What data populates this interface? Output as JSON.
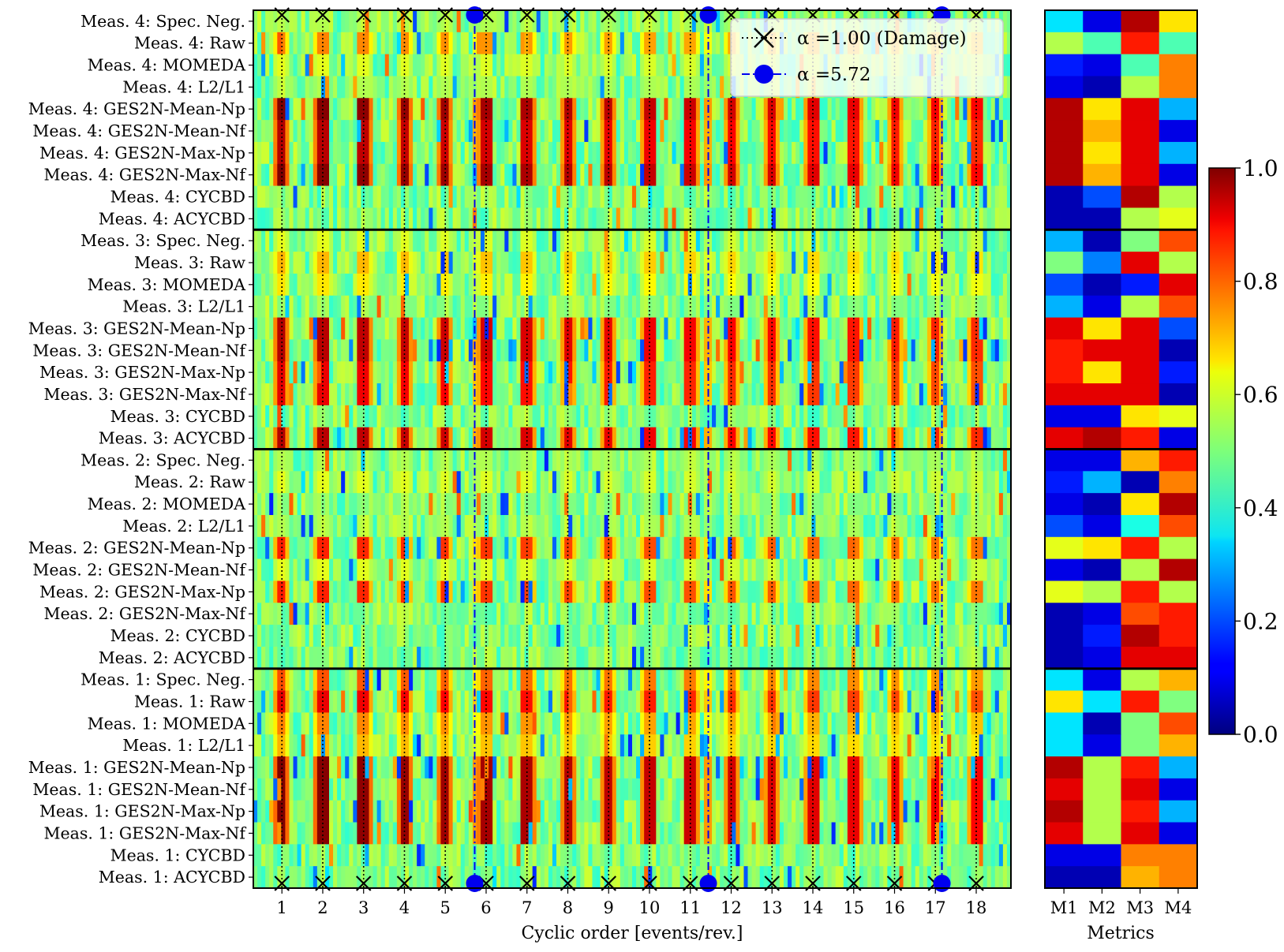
{
  "chart_data": [
    {
      "type": "heatmap",
      "xlabel": "Cyclic order [events/rev.]",
      "ylabel": "",
      "xlim": [
        0.3,
        18.85
      ],
      "xticks": [
        1,
        2,
        3,
        4,
        5,
        6,
        7,
        8,
        9,
        10,
        11,
        12,
        13,
        14,
        15,
        16,
        17,
        18
      ],
      "rows": [
        "Meas. 4: Spec. Neg.",
        "Meas. 4: Raw",
        "Meas. 4: MOMEDA",
        "Meas. 4: L2/L1",
        "Meas. 4: GES2N-Mean-Np",
        "Meas. 4: GES2N-Mean-Nf",
        "Meas. 4: GES2N-Max-Np",
        "Meas. 4: GES2N-Max-Nf",
        "Meas. 4: CYCBD",
        "Meas. 4: ACYCBD",
        "Meas. 3: Spec. Neg.",
        "Meas. 3: Raw",
        "Meas. 3: MOMEDA",
        "Meas. 3: L2/L1",
        "Meas. 3: GES2N-Mean-Np",
        "Meas. 3: GES2N-Mean-Nf",
        "Meas. 3: GES2N-Max-Np",
        "Meas. 3: GES2N-Max-Nf",
        "Meas. 3: CYCBD",
        "Meas. 3: ACYCBD",
        "Meas. 2: Spec. Neg.",
        "Meas. 2: Raw",
        "Meas. 2: MOMEDA",
        "Meas. 2: L2/L1",
        "Meas. 2: GES2N-Mean-Np",
        "Meas. 2: GES2N-Mean-Nf",
        "Meas. 2: GES2N-Max-Np",
        "Meas. 2: GES2N-Max-Nf",
        "Meas. 2: CYCBD",
        "Meas. 2: ACYCBD",
        "Meas. 1: Spec. Neg.",
        "Meas. 1: Raw",
        "Meas. 1: MOMEDA",
        "Meas. 1: L2/L1",
        "Meas. 1: GES2N-Mean-Np",
        "Meas. 1: GES2N-Mean-Nf",
        "Meas. 1: GES2N-Max-Np",
        "Meas. 1: GES2N-Max-Nf",
        "Meas. 1: CYCBD",
        "Meas. 1: ACYCBD"
      ],
      "group_separators_after_rows": [
        10,
        20,
        30
      ],
      "row_peak_levels": [
        0.55,
        0.75,
        0.6,
        0.55,
        1.0,
        0.95,
        0.95,
        1.0,
        0.4,
        0.4,
        0.6,
        0.7,
        0.65,
        0.5,
        0.95,
        0.95,
        0.9,
        0.9,
        0.35,
        0.95,
        0.55,
        0.6,
        0.5,
        0.55,
        0.85,
        0.6,
        0.85,
        0.45,
        0.3,
        0.3,
        0.8,
        0.9,
        0.75,
        0.7,
        1.0,
        1.0,
        1.0,
        1.0,
        0.3,
        0.3
      ],
      "markers": [
        {
          "label": "α =1.00 (Damage)",
          "orders": [
            1,
            2,
            3,
            4,
            5,
            6,
            7,
            8,
            9,
            10,
            11,
            12,
            13,
            14,
            15,
            16,
            17,
            18
          ],
          "symbol": "x",
          "line_style": "dotted",
          "color": "#000000"
        },
        {
          "label": "α =5.72",
          "orders": [
            5.72,
            11.44,
            17.16
          ],
          "symbol": "circle",
          "line_style": "dashdot",
          "color": "#0000ee"
        }
      ],
      "legend_position": "top-right"
    },
    {
      "type": "heatmap",
      "xlabel": "Metrics",
      "columns": [
        "M1",
        "M2",
        "M3",
        "M4"
      ],
      "values": [
        [
          0.35,
          0.1,
          0.95,
          0.65
        ],
        [
          0.55,
          0.45,
          0.85,
          0.45
        ],
        [
          0.15,
          0.1,
          0.45,
          0.75
        ],
        [
          0.1,
          0.05,
          0.55,
          0.75
        ],
        [
          0.95,
          0.65,
          0.9,
          0.3
        ],
        [
          0.95,
          0.7,
          0.9,
          0.1
        ],
        [
          0.95,
          0.65,
          0.9,
          0.3
        ],
        [
          0.95,
          0.7,
          0.9,
          0.1
        ],
        [
          0.05,
          0.2,
          0.95,
          0.55
        ],
        [
          0.05,
          0.05,
          0.55,
          0.6
        ],
        [
          0.3,
          0.05,
          0.5,
          0.8
        ],
        [
          0.5,
          0.25,
          0.9,
          0.55
        ],
        [
          0.2,
          0.05,
          0.15,
          0.9
        ],
        [
          0.3,
          0.1,
          0.55,
          0.8
        ],
        [
          0.9,
          0.65,
          0.9,
          0.2
        ],
        [
          0.85,
          0.9,
          0.9,
          0.05
        ],
        [
          0.85,
          0.65,
          0.9,
          0.15
        ],
        [
          0.9,
          0.9,
          0.9,
          0.05
        ],
        [
          0.1,
          0.1,
          0.65,
          0.6
        ],
        [
          0.9,
          0.95,
          0.85,
          0.1
        ],
        [
          0.1,
          0.1,
          0.7,
          0.85
        ],
        [
          0.15,
          0.3,
          0.05,
          0.75
        ],
        [
          0.1,
          0.05,
          0.65,
          0.95
        ],
        [
          0.2,
          0.1,
          0.4,
          0.8
        ],
        [
          0.6,
          0.65,
          0.85,
          0.55
        ],
        [
          0.1,
          0.05,
          0.55,
          0.95
        ],
        [
          0.6,
          0.55,
          0.85,
          0.55
        ],
        [
          0.05,
          0.1,
          0.8,
          0.85
        ],
        [
          0.05,
          0.15,
          0.95,
          0.85
        ],
        [
          0.05,
          0.1,
          0.9,
          0.9
        ],
        [
          0.35,
          0.1,
          0.55,
          0.7
        ],
        [
          0.65,
          0.35,
          0.85,
          0.5
        ],
        [
          0.35,
          0.05,
          0.5,
          0.8
        ],
        [
          0.35,
          0.1,
          0.5,
          0.7
        ],
        [
          0.95,
          0.55,
          0.85,
          0.3
        ],
        [
          0.9,
          0.55,
          0.9,
          0.1
        ],
        [
          0.95,
          0.55,
          0.85,
          0.3
        ],
        [
          0.9,
          0.55,
          0.9,
          0.1
        ],
        [
          0.1,
          0.1,
          0.75,
          0.75
        ],
        [
          0.05,
          0.05,
          0.7,
          0.75
        ]
      ]
    },
    {
      "type": "colorbar",
      "range": [
        0.0,
        1.0
      ],
      "ticks": [
        0.0,
        0.2,
        0.4,
        0.6,
        0.8,
        1.0
      ],
      "tick_labels": [
        "0.0",
        "0.2",
        "0.4",
        "0.6",
        "0.8",
        "1.0"
      ],
      "colormap": "jet"
    }
  ],
  "colors": {
    "background_value": 0.5,
    "damage_marker": "#000000",
    "alpha_marker": "#0000ee",
    "separator": "#000000"
  }
}
